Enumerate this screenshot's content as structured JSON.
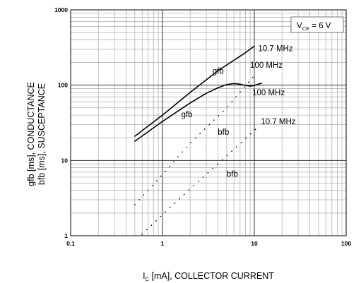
{
  "chart_data": {
    "type": "line",
    "x_scale": "log",
    "y_scale": "log",
    "xlim": [
      0.1,
      100
    ],
    "ylim": [
      1,
      1000
    ],
    "grid": true,
    "x_ticks": [
      "0.1",
      "1",
      "10",
      "100"
    ],
    "y_ticks": [
      "1",
      "10",
      "100",
      "1000"
    ],
    "xlabel_main": "I",
    "xlabel_sub": "C",
    "xlabel_rest": " [mA], COLLECTOR CURRENT",
    "ylabel_line1": "gfb [ms], CONDUCTANCE",
    "ylabel_line2": "bfb [ms], SUSCEPTANCE",
    "condition_main": "V",
    "condition_sub": "CE",
    "condition_rest": " = 6 V",
    "series": [
      {
        "name": "gfb 10.7 MHz",
        "style": "solid",
        "x": [
          0.5,
          1,
          2,
          4,
          8,
          10
        ],
        "y": [
          21,
          40,
          80,
          155,
          270,
          330
        ]
      },
      {
        "name": "gfb 100 MHz",
        "style": "solid",
        "x": [
          0.5,
          1,
          2,
          3,
          4,
          5,
          6,
          7,
          8,
          9,
          10,
          11,
          12
        ],
        "y": [
          18,
          33,
          58,
          78,
          92,
          102,
          105,
          103,
          99,
          97,
          99,
          103,
          106
        ]
      },
      {
        "name": "bfb 100 MHz",
        "style": "dotted",
        "x": [
          0.5,
          1,
          2,
          5,
          10
        ],
        "y": [
          2.6,
          6.5,
          17,
          50,
          135
        ]
      },
      {
        "name": "bfb 10.7 MHz",
        "style": "dotted",
        "x": [
          0.6,
          1,
          2,
          5,
          10,
          11
        ],
        "y": [
          1.05,
          1.9,
          4.2,
          11.5,
          25,
          28
        ]
      }
    ],
    "annotations": [
      {
        "text": "10.7 MHz",
        "x": 11,
        "y": 310
      },
      {
        "text": "gfb",
        "x": 3.5,
        "y": 155
      },
      {
        "text": "100 MHz",
        "x": 9,
        "y": 185
      },
      {
        "text": "100 MHz",
        "x": 9.5,
        "y": 80
      },
      {
        "text": "gfb",
        "x": 1.6,
        "y": 41
      },
      {
        "text": "bfb",
        "x": 4,
        "y": 24
      },
      {
        "text": "10.7 MHz",
        "x": 11.8,
        "y": 33
      },
      {
        "text": "bfb",
        "x": 5,
        "y": 6.6
      }
    ]
  }
}
